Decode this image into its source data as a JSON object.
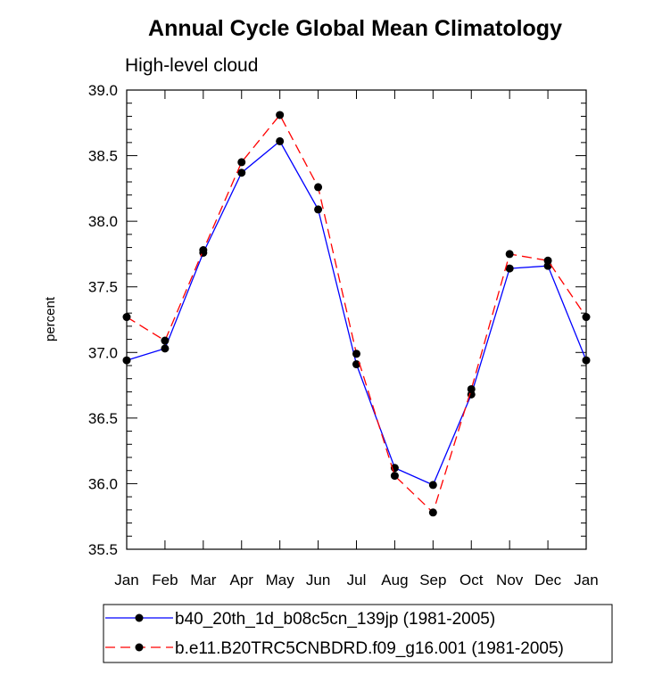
{
  "chart_data": {
    "type": "line",
    "title": "Annual Cycle Global Mean Climatology",
    "subtitle": "High-level cloud",
    "xlabel": "",
    "ylabel": "percent",
    "categories": [
      "Jan",
      "Feb",
      "Mar",
      "Apr",
      "May",
      "Jun",
      "Jul",
      "Aug",
      "Sep",
      "Oct",
      "Nov",
      "Dec",
      "Jan"
    ],
    "ylim": [
      35.5,
      39.0
    ],
    "yticks": [
      "35.5",
      "36.0",
      "36.5",
      "37.0",
      "37.5",
      "38.0",
      "38.5",
      "39.0"
    ],
    "grid": false,
    "legend_position": "bottom",
    "series": [
      {
        "name": "b40_20th_1d_b08c5cn_139jp (1981-2005)",
        "color": "#0000ff",
        "dash": "solid",
        "values": [
          36.94,
          37.03,
          37.76,
          38.37,
          38.61,
          38.09,
          36.91,
          36.12,
          35.99,
          36.68,
          37.64,
          37.66,
          36.94
        ]
      },
      {
        "name": "b.e11.B20TRC5CNBDRD.f09_g16.001 (1981-2005)",
        "color": "#ff0000",
        "dash": "dashed",
        "values": [
          37.27,
          37.09,
          37.78,
          38.45,
          38.81,
          38.26,
          36.99,
          36.06,
          35.78,
          36.72,
          37.75,
          37.7,
          37.27
        ]
      }
    ]
  }
}
